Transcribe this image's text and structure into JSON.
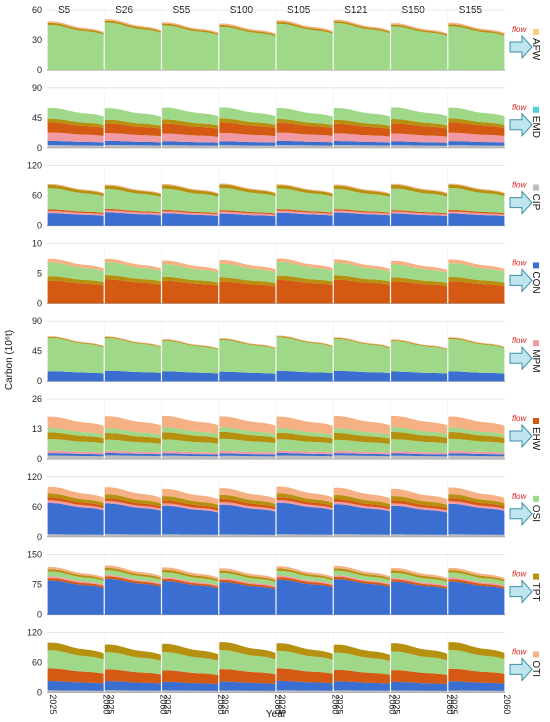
{
  "chart_data": {
    "type": "area",
    "ylabel": "Carbon (10⁶t)",
    "xlabel": "Year",
    "scenarios": [
      "S5",
      "S26",
      "S55",
      "S100",
      "S105",
      "S121",
      "S150",
      "S155"
    ],
    "x_start_label": "2025",
    "x_end_label": "2060",
    "flow_label": "flow",
    "sector_colors": {
      "AFW": "#f7d27a",
      "EMD": "#4fcfd6",
      "CIP": "#bdbdbd",
      "CON": "#3a6fd1",
      "MPM": "#f29aa3",
      "EHW": "#d45a13",
      "OSI": "#9fd889",
      "TPT": "#b6900f",
      "OTI": "#f5b184"
    },
    "panels": [
      {
        "sector": "AFW",
        "ymax": 60,
        "ticks": [
          "0",
          "30",
          "60"
        ],
        "layers": [
          {
            "sector": "OSI",
            "value": 45
          },
          {
            "sector": "TPT",
            "value": 2
          },
          {
            "sector": "OTI",
            "value": 1.5
          }
        ]
      },
      {
        "sector": "EMD",
        "ymax": 90,
        "ticks": [
          "0",
          "45",
          "90"
        ],
        "layers": [
          {
            "sector": "CIP",
            "value": 4
          },
          {
            "sector": "CON",
            "value": 6
          },
          {
            "sector": "MPM",
            "value": 12
          },
          {
            "sector": "EHW",
            "value": 15
          },
          {
            "sector": "TPT",
            "value": 6
          },
          {
            "sector": "OSI",
            "value": 17
          }
        ]
      },
      {
        "sector": "CIP",
        "ymax": 120,
        "ticks": [
          "0",
          "60",
          "120"
        ],
        "layers": [
          {
            "sector": "CON",
            "value": 25
          },
          {
            "sector": "MPM",
            "value": 4
          },
          {
            "sector": "EHW",
            "value": 3
          },
          {
            "sector": "OSI",
            "value": 42
          },
          {
            "sector": "TPT",
            "value": 7
          },
          {
            "sector": "OTI",
            "value": 2
          }
        ]
      },
      {
        "sector": "CON",
        "ymax": 10,
        "ticks": [
          "0",
          "5",
          "10"
        ],
        "layers": [
          {
            "sector": "EHW",
            "value": 3.8
          },
          {
            "sector": "TPT",
            "value": 0.7
          },
          {
            "sector": "OSI",
            "value": 2.2
          },
          {
            "sector": "OTI",
            "value": 0.6
          }
        ]
      },
      {
        "sector": "MPM",
        "ymax": 90,
        "ticks": [
          "0",
          "45",
          "90"
        ],
        "layers": [
          {
            "sector": "CON",
            "value": 15
          },
          {
            "sector": "OSI",
            "value": 48
          },
          {
            "sector": "TPT",
            "value": 1.5
          },
          {
            "sector": "OTI",
            "value": 1
          }
        ]
      },
      {
        "sector": "EHW",
        "ymax": 26,
        "ticks": [
          "0",
          "13",
          "26"
        ],
        "layers": [
          {
            "sector": "CIP",
            "value": 1.5
          },
          {
            "sector": "CON",
            "value": 1
          },
          {
            "sector": "MPM",
            "value": 1
          },
          {
            "sector": "OSI",
            "value": 5
          },
          {
            "sector": "TPT",
            "value": 3
          },
          {
            "sector": "OSI",
            "value": 2
          },
          {
            "sector": "OTI",
            "value": 5
          }
        ]
      },
      {
        "sector": "OSI",
        "ymax": 120,
        "ticks": [
          "0",
          "60",
          "120"
        ],
        "layers": [
          {
            "sector": "CIP",
            "value": 5
          },
          {
            "sector": "CON",
            "value": 60
          },
          {
            "sector": "MPM",
            "value": 5
          },
          {
            "sector": "EHW",
            "value": 6
          },
          {
            "sector": "TPT",
            "value": 8
          },
          {
            "sector": "OTI",
            "value": 14
          }
        ]
      },
      {
        "sector": "TPT",
        "ymax": 150,
        "ticks": [
          "0",
          "75",
          "150"
        ],
        "layers": [
          {
            "sector": "CON",
            "value": 85
          },
          {
            "sector": "EHW",
            "value": 6
          },
          {
            "sector": "MPM",
            "value": 4
          },
          {
            "sector": "OSI",
            "value": 12
          },
          {
            "sector": "TPT",
            "value": 6
          },
          {
            "sector": "OTI",
            "value": 6
          }
        ]
      },
      {
        "sector": "OTI",
        "ymax": 120,
        "ticks": [
          "0",
          "60",
          "120"
        ],
        "layers": [
          {
            "sector": "CIP",
            "value": 4
          },
          {
            "sector": "CON",
            "value": 18
          },
          {
            "sector": "EHW",
            "value": 24
          },
          {
            "sector": "OSI",
            "value": 36
          },
          {
            "sector": "TPT",
            "value": 16
          }
        ]
      }
    ]
  }
}
